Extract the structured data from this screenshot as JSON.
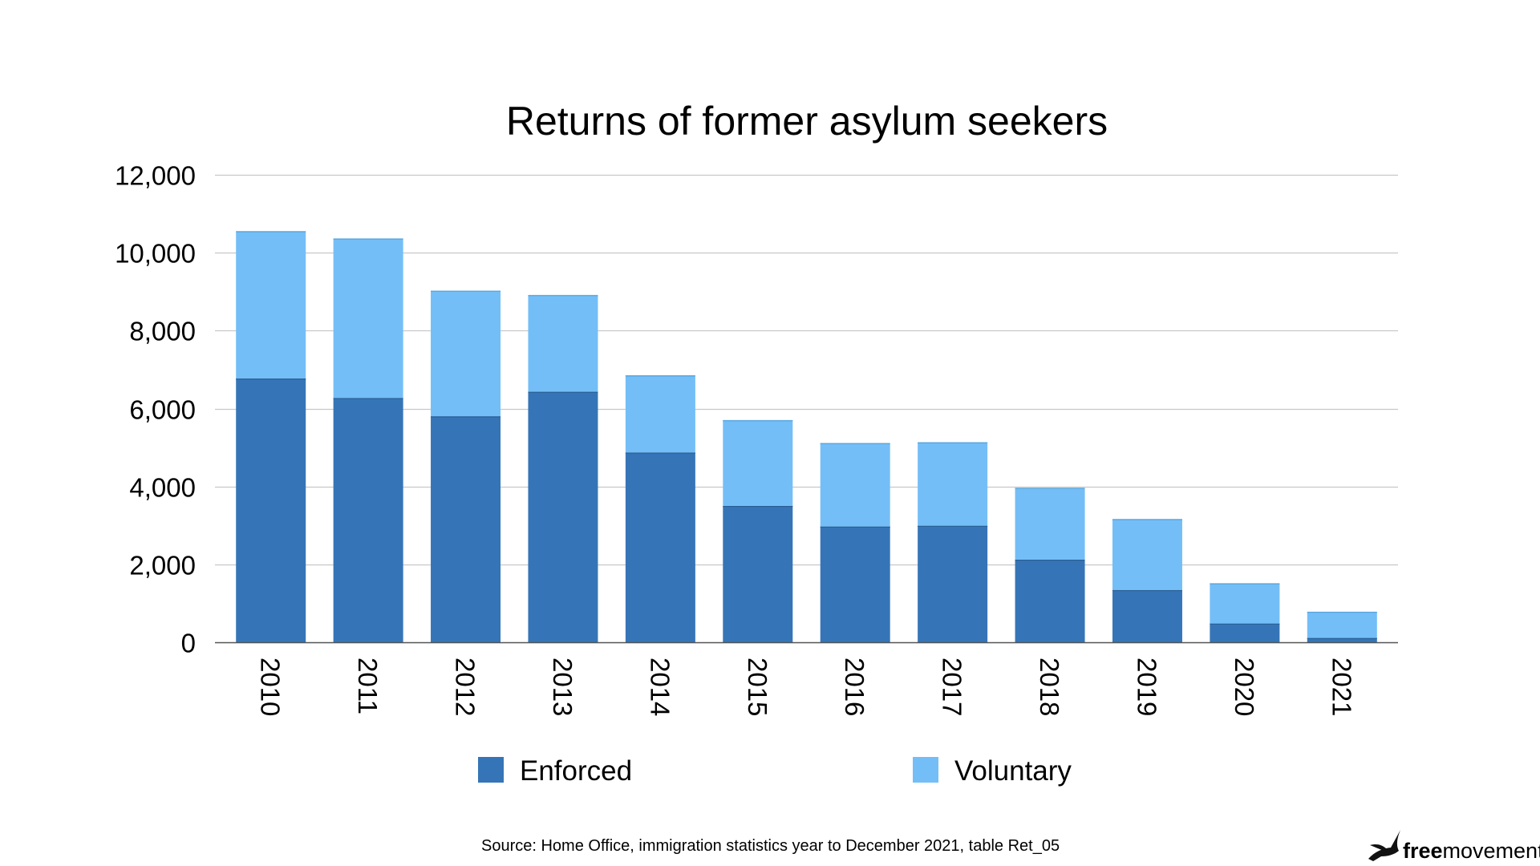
{
  "chart_data": {
    "type": "bar",
    "stacked": true,
    "title": "Returns of former asylum seekers",
    "categories": [
      "2010",
      "2011",
      "2012",
      "2013",
      "2014",
      "2015",
      "2016",
      "2017",
      "2018",
      "2019",
      "2020",
      "2021"
    ],
    "series": [
      {
        "name": "Enforced",
        "color": "#3575B7",
        "values": [
          6770,
          6270,
          5800,
          6430,
          4870,
          3500,
          2970,
          2990,
          2120,
          1340,
          480,
          110
        ]
      },
      {
        "name": "Voluntary",
        "color": "#74BEF7",
        "values": [
          3780,
          4090,
          3220,
          2480,
          1980,
          2200,
          2140,
          2140,
          1840,
          1820,
          1030,
          670
        ]
      }
    ],
    "ylim": [
      0,
      12000
    ],
    "yticks": [
      0,
      2000,
      4000,
      6000,
      8000,
      10000,
      12000
    ],
    "ytick_labels": [
      "0",
      "2,000",
      "4,000",
      "6,000",
      "8,000",
      "10,000",
      "12,000"
    ],
    "grid": true,
    "legend_position": "bottom",
    "xtick_rotation": "vertical"
  },
  "footer": {
    "source": "Source: Home Office, immigration statistics year to December 2021, table Ret_05"
  },
  "brand": {
    "part1": "free",
    "part2": "movement",
    "icon": "bird-icon"
  }
}
